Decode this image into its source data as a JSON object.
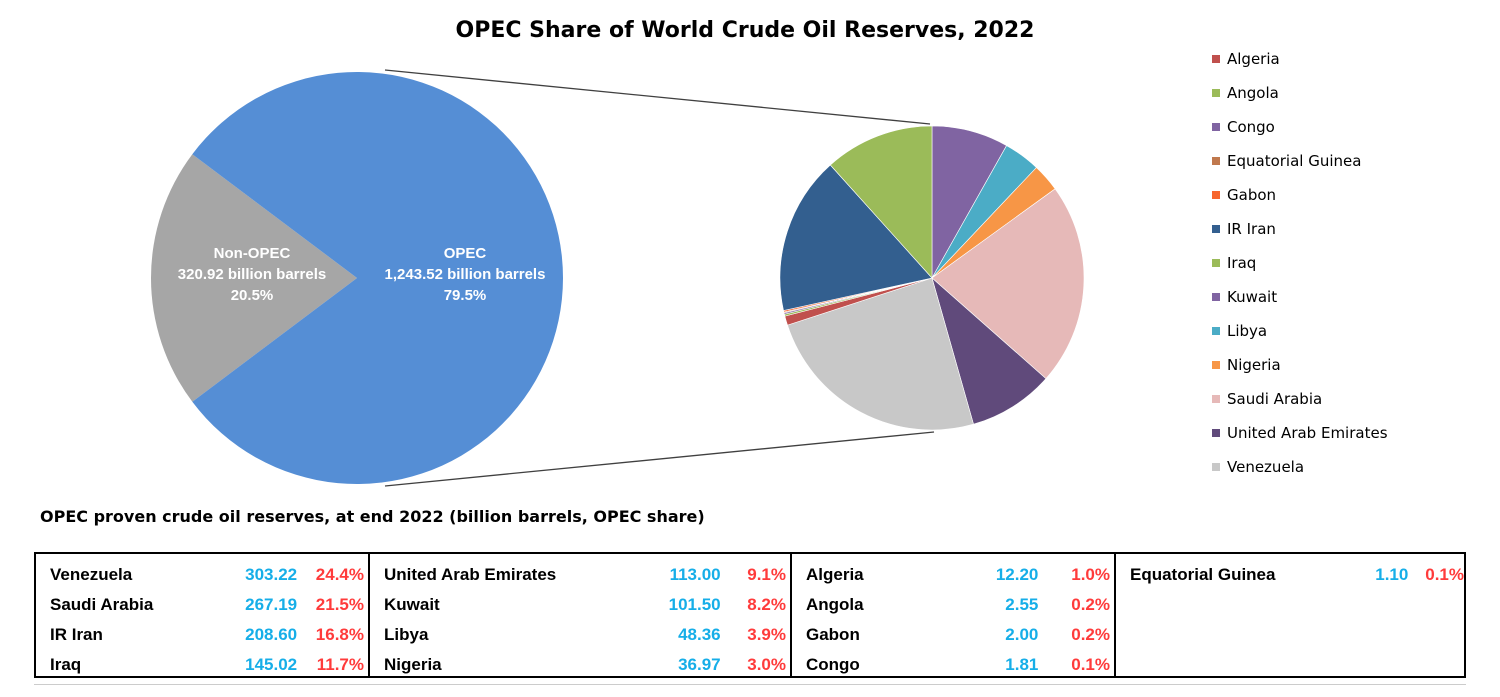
{
  "chart_data": {
    "type": "pie",
    "title": "OPEC Share of World Crude Oil Reserves, 2022",
    "main_pie": {
      "slices": [
        {
          "name": "OPEC",
          "label_lines": [
            "OPEC",
            "1,243.52 billion barrels",
            "79.5%"
          ],
          "value": 1243.52,
          "share": 79.5,
          "color": "#558ed5"
        },
        {
          "name": "Non-OPEC",
          "label_lines": [
            "Non-OPEC",
            "320.92 billion barrels",
            "20.5%"
          ],
          "value": 320.92,
          "share": 20.5,
          "color": "#a6a6a6"
        }
      ]
    },
    "breakdown_pie": {
      "slices": [
        {
          "name": "Kuwait",
          "value": 101.5,
          "color": "#8064a2"
        },
        {
          "name": "Libya",
          "value": 48.36,
          "color": "#4bacc6"
        },
        {
          "name": "Nigeria",
          "value": 36.97,
          "color": "#f79646"
        },
        {
          "name": "Saudi Arabia",
          "value": 267.19,
          "color": "#e6b9b8"
        },
        {
          "name": "United Arab Emirates",
          "value": 113.0,
          "color": "#604a7b"
        },
        {
          "name": "Venezuela",
          "value": 303.22,
          "color": "#c8c8c8"
        },
        {
          "name": "Algeria",
          "value": 12.2,
          "color": "#c0504d"
        },
        {
          "name": "Angola",
          "value": 2.55,
          "color": "#9bbb59"
        },
        {
          "name": "Congo",
          "value": 1.81,
          "color": "#8064a2"
        },
        {
          "name": "Equatorial Guinea",
          "value": 1.1,
          "color": "#c0784d"
        },
        {
          "name": "Gabon",
          "value": 2.0,
          "color": "#f7662e"
        },
        {
          "name": "IR Iran",
          "value": 208.6,
          "color": "#335f8f"
        },
        {
          "name": "Iraq",
          "value": 145.02,
          "color": "#9bbb59"
        }
      ]
    },
    "legend": [
      {
        "label": "Algeria",
        "color": "#c0504d"
      },
      {
        "label": "Angola",
        "color": "#9bbb59"
      },
      {
        "label": "Congo",
        "color": "#8064a2"
      },
      {
        "label": "Equatorial Guinea",
        "color": "#c0784d"
      },
      {
        "label": "Gabon",
        "color": "#f7662e"
      },
      {
        "label": "IR Iran",
        "color": "#335f8f"
      },
      {
        "label": "Iraq",
        "color": "#9bbb59"
      },
      {
        "label": "Kuwait",
        "color": "#8064a2"
      },
      {
        "label": "Libya",
        "color": "#4bacc6"
      },
      {
        "label": "Nigeria",
        "color": "#f79646"
      },
      {
        "label": "Saudi Arabia",
        "color": "#e6b9b8"
      },
      {
        "label": "United Arab Emirates",
        "color": "#604a7b"
      },
      {
        "label": "Venezuela",
        "color": "#c8c8c8"
      }
    ]
  },
  "table": {
    "title": "OPEC proven crude oil reserves, at end 2022 (billion barrels, OPEC share)",
    "columns": [
      [
        {
          "name": "Venezuela",
          "value": "303.22",
          "share": "24.4%"
        },
        {
          "name": "Saudi Arabia",
          "value": "267.19",
          "share": "21.5%"
        },
        {
          "name": "IR Iran",
          "value": "208.60",
          "share": "16.8%"
        },
        {
          "name": "Iraq",
          "value": "145.02",
          "share": "11.7%"
        }
      ],
      [
        {
          "name": "United Arab Emirates",
          "value": "113.00",
          "share": "9.1%"
        },
        {
          "name": "Kuwait",
          "value": "101.50",
          "share": "8.2%"
        },
        {
          "name": "Libya",
          "value": "48.36",
          "share": "3.9%"
        },
        {
          "name": "Nigeria",
          "value": "36.97",
          "share": "3.0%"
        }
      ],
      [
        {
          "name": "Algeria",
          "value": "12.20",
          "share": "1.0%"
        },
        {
          "name": "Angola",
          "value": "2.55",
          "share": "0.2%"
        },
        {
          "name": "Gabon",
          "value": "2.00",
          "share": "0.2%"
        },
        {
          "name": "Congo",
          "value": "1.81",
          "share": "0.1%"
        }
      ],
      [
        {
          "name": "Equatorial Guinea",
          "value": "1.10",
          "share": "0.1%"
        }
      ]
    ]
  }
}
